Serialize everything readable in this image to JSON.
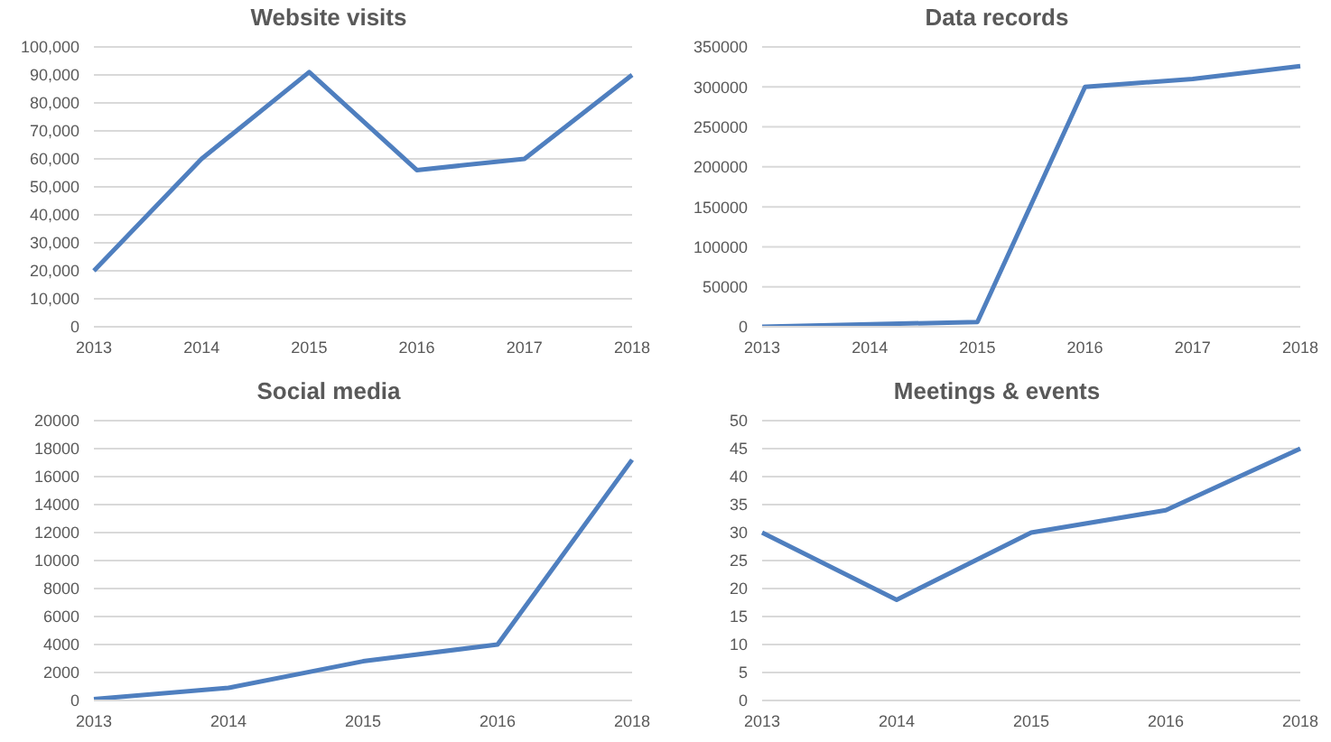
{
  "chart_data": [
    {
      "type": "line",
      "title": "Website visits",
      "categories": [
        "2013",
        "2014",
        "2015",
        "2016",
        "2017",
        "2018"
      ],
      "series": [
        {
          "color": "#4f7fbf",
          "values": [
            20000,
            60000,
            91000,
            56000,
            60000,
            90000
          ]
        }
      ],
      "ylim": [
        0,
        100000
      ],
      "yticks": [
        {
          "value": 0,
          "label": "0"
        },
        {
          "value": 10000,
          "label": "10,000"
        },
        {
          "value": 20000,
          "label": "20,000"
        },
        {
          "value": 30000,
          "label": "30,000"
        },
        {
          "value": 40000,
          "label": "40,000"
        },
        {
          "value": 50000,
          "label": "50,000"
        },
        {
          "value": 60000,
          "label": "60,000"
        },
        {
          "value": 70000,
          "label": "70,000"
        },
        {
          "value": 80000,
          "label": "80,000"
        },
        {
          "value": 90000,
          "label": "90,000"
        },
        {
          "value": 100000,
          "label": "100,000"
        }
      ],
      "grid": "y",
      "marker": "none",
      "line_style": "solid",
      "legend": false
    },
    {
      "type": "line",
      "title": "Data records",
      "categories": [
        "2013",
        "2014",
        "2015",
        "2016",
        "2017",
        "2018"
      ],
      "series": [
        {
          "color": "#4f7fbf",
          "values": [
            0,
            3000,
            6000,
            300000,
            310000,
            326000
          ]
        }
      ],
      "ylim": [
        0,
        350000
      ],
      "yticks": [
        0,
        50000,
        100000,
        150000,
        200000,
        250000,
        300000,
        350000
      ],
      "grid": "y",
      "marker": "none",
      "line_style": "solid",
      "legend": false
    },
    {
      "type": "line",
      "title": "Social media",
      "categories": [
        "2013",
        "2014",
        "2015",
        "2016",
        "2018"
      ],
      "series": [
        {
          "color": "#4f7fbf",
          "values": [
            100,
            900,
            2800,
            4000,
            17200
          ]
        }
      ],
      "ylim": [
        0,
        20000
      ],
      "yticks": [
        0,
        2000,
        4000,
        6000,
        8000,
        10000,
        12000,
        14000,
        16000,
        18000,
        20000
      ],
      "grid": "y",
      "marker": "none",
      "line_style": "solid",
      "legend": false
    },
    {
      "type": "line",
      "title": "Meetings & events",
      "categories": [
        "2013",
        "2014",
        "2015",
        "2016",
        "2018"
      ],
      "series": [
        {
          "color": "#4f7fbf",
          "values": [
            30,
            18,
            30,
            34,
            45
          ]
        }
      ],
      "ylim": [
        0,
        50
      ],
      "yticks": [
        0,
        5,
        10,
        15,
        20,
        25,
        30,
        35,
        40,
        45,
        50
      ],
      "grid": "y",
      "marker": "none",
      "line_style": "solid",
      "legend": false
    }
  ]
}
